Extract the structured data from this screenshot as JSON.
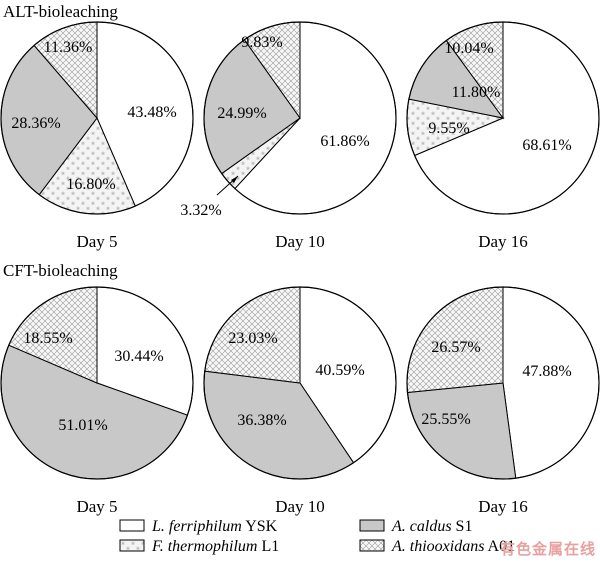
{
  "colors": {
    "L": "#ffffff",
    "A_caldus": "#c8c8c8",
    "F": "#f2f2f2",
    "A_thio": "#f4f4f4",
    "stroke": "#000000"
  },
  "chart_data": [
    {
      "type": "pie",
      "group": "ALT-bioleaching",
      "label": "Day 5",
      "slices": [
        {
          "series": "L. ferriphilum YSK",
          "value": 43.48,
          "label": "43.48%"
        },
        {
          "series": "F. thermophilum L1",
          "value": 16.8,
          "label": "16.80%"
        },
        {
          "series": "A. caldus S1",
          "value": 28.36,
          "label": "28.36%"
        },
        {
          "series": "A. thiooxidans A01",
          "value": 11.36,
          "label": "11.36%"
        }
      ]
    },
    {
      "type": "pie",
      "group": "ALT-bioleaching",
      "label": "Day 10",
      "slices": [
        {
          "series": "L. ferriphilum YSK",
          "value": 61.86,
          "label": "61.86%"
        },
        {
          "series": "F. thermophilum L1",
          "value": 3.32,
          "label": "3.32%"
        },
        {
          "series": "A. caldus S1",
          "value": 24.99,
          "label": "24.99%"
        },
        {
          "series": "A. thiooxidans A01",
          "value": 9.83,
          "label": "9.83%"
        }
      ]
    },
    {
      "type": "pie",
      "group": "ALT-bioleaching",
      "label": "Day 16",
      "slices": [
        {
          "series": "L. ferriphilum YSK",
          "value": 68.61,
          "label": "68.61%"
        },
        {
          "series": "F. thermophilum L1",
          "value": 9.55,
          "label": "9.55%"
        },
        {
          "series": "A. caldus S1",
          "value": 11.8,
          "label": "11.80%"
        },
        {
          "series": "A. thiooxidans A01",
          "value": 10.04,
          "label": "10.04%"
        }
      ]
    },
    {
      "type": "pie",
      "group": "CFT-bioleaching",
      "label": "Day 5",
      "slices": [
        {
          "series": "L. ferriphilum YSK",
          "value": 30.44,
          "label": "30.44%"
        },
        {
          "series": "A. caldus S1",
          "value": 51.01,
          "label": "51.01%"
        },
        {
          "series": "A. thiooxidans A01",
          "value": 18.55,
          "label": "18.55%"
        }
      ]
    },
    {
      "type": "pie",
      "group": "CFT-bioleaching",
      "label": "Day 10",
      "slices": [
        {
          "series": "L. ferriphilum YSK",
          "value": 40.59,
          "label": "40.59%"
        },
        {
          "series": "A. caldus S1",
          "value": 36.38,
          "label": "36.38%"
        },
        {
          "series": "A. thiooxidans A01",
          "value": 23.03,
          "label": "23.03%"
        }
      ]
    },
    {
      "type": "pie",
      "group": "CFT-bioleaching",
      "label": "Day 16",
      "slices": [
        {
          "series": "L. ferriphilum YSK",
          "value": 47.88,
          "label": "47.88%"
        },
        {
          "series": "A. caldus S1",
          "value": 25.55,
          "label": "25.55%"
        },
        {
          "series": "A. thiooxidans A01",
          "value": 26.57,
          "label": "26.57%"
        }
      ]
    }
  ],
  "legend": [
    {
      "key": "L",
      "italic": "L. ferriphilum",
      "rest": " YSK",
      "pattern": "white"
    },
    {
      "key": "A_caldus",
      "italic": "A. caldus",
      "rest": " S1",
      "pattern": "gray"
    },
    {
      "key": "F",
      "italic": "F. thermophilum",
      "rest": " L1",
      "pattern": "stars"
    },
    {
      "key": "A_thio",
      "italic": "A. thiooxidans",
      "rest": " A01",
      "pattern": "cross"
    }
  ],
  "section_titles": [
    "ALT-bioleaching",
    "CFT-bioleaching"
  ],
  "watermark": "有色金属在线"
}
